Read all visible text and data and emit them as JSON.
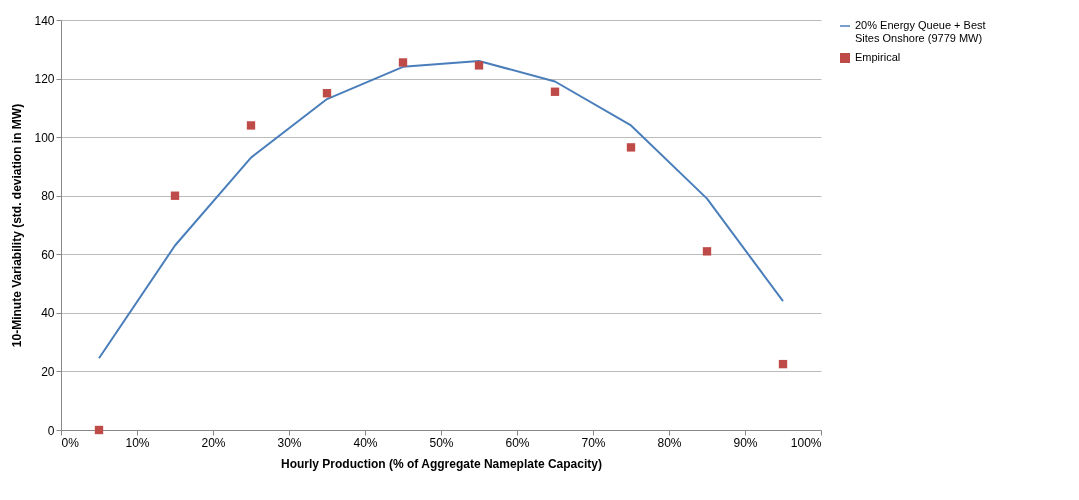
{
  "chart_data": {
    "type": "line",
    "xlabel": "Hourly Production (% of Aggregate Nameplate Capacity)",
    "ylabel": "10-Minute Variability (std. deviation in MW)",
    "x": [
      5,
      15,
      25,
      35,
      45,
      55,
      65,
      75,
      85,
      95
    ],
    "series": [
      {
        "name": "20% Energy Queue + Best Sites Onshore (9779 MW)",
        "color": "#4a7ebb",
        "values": [
          24.5,
          63,
          93,
          113,
          124,
          126,
          119,
          104,
          79,
          44
        ]
      },
      {
        "name": "Empirical",
        "type": "scatter",
        "marker": "square",
        "color": "#be4b48",
        "values": [
          0,
          80,
          104,
          115,
          125.5,
          124.5,
          115.5,
          96.5,
          61,
          22.5
        ]
      }
    ],
    "xlim": [
      0,
      100
    ],
    "xticks": [
      {
        "value": 0,
        "label": "0%"
      },
      {
        "value": 10,
        "label": "10%"
      },
      {
        "value": 20,
        "label": "20%"
      },
      {
        "value": 30,
        "label": "30%"
      },
      {
        "value": 40,
        "label": "40%"
      },
      {
        "value": 50,
        "label": "50%"
      },
      {
        "value": 60,
        "label": "60%"
      },
      {
        "value": 70,
        "label": "70%"
      },
      {
        "value": 80,
        "label": "80%"
      },
      {
        "value": 90,
        "label": "90%"
      },
      {
        "value": 100,
        "label": "100%"
      }
    ],
    "ylim": [
      0,
      140
    ],
    "yticks": [
      0,
      20,
      40,
      60,
      80,
      100,
      120,
      140
    ],
    "grid": "y",
    "legend": "top right"
  }
}
